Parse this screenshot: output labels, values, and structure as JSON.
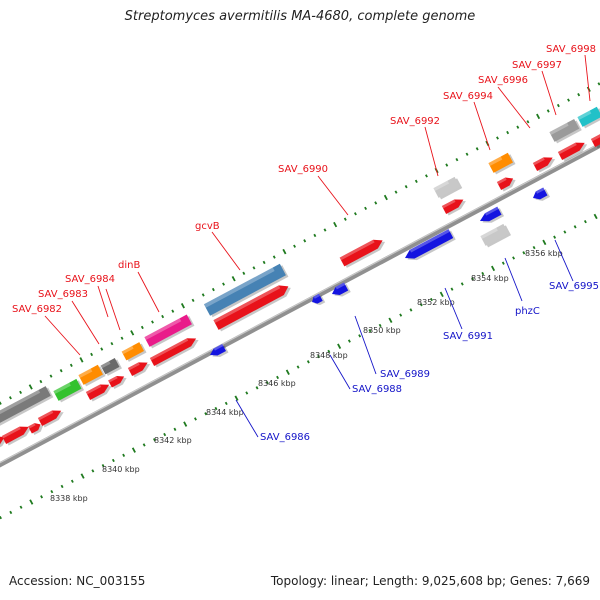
{
  "title": "Streptomyces avermitilis MA-4680, complete genome",
  "footer": {
    "accession": "Accession: NC_003155",
    "summary": "Topology: linear; Length: 9,025,608 bp; Genes: 7,669"
  },
  "colors": {
    "forward_label": "#e8121a",
    "reverse_label": "#1414c8",
    "tick": "#1f7a1f",
    "backbone": "#909090"
  },
  "scale_labels": [
    "8338 kbp",
    "8340 kbp",
    "8342 kbp",
    "8344 kbp",
    "8346 kbp",
    "8348 kbp",
    "8350 kbp",
    "8352 kbp",
    "8354 kbp",
    "8356 kbp"
  ],
  "forward_gene_labels": [
    "SAV_6982",
    "SAV_6983",
    "SAV_6984",
    "dinB",
    "gcvB",
    "SAV_6990",
    "SAV_6992",
    "SAV_6994",
    "SAV_6996",
    "SAV_6997",
    "SAV_6998"
  ],
  "reverse_gene_labels": [
    "SAV_6986",
    "SAV_6988",
    "SAV_6989",
    "SAV_6991",
    "phzC",
    "SAV_6995"
  ]
}
